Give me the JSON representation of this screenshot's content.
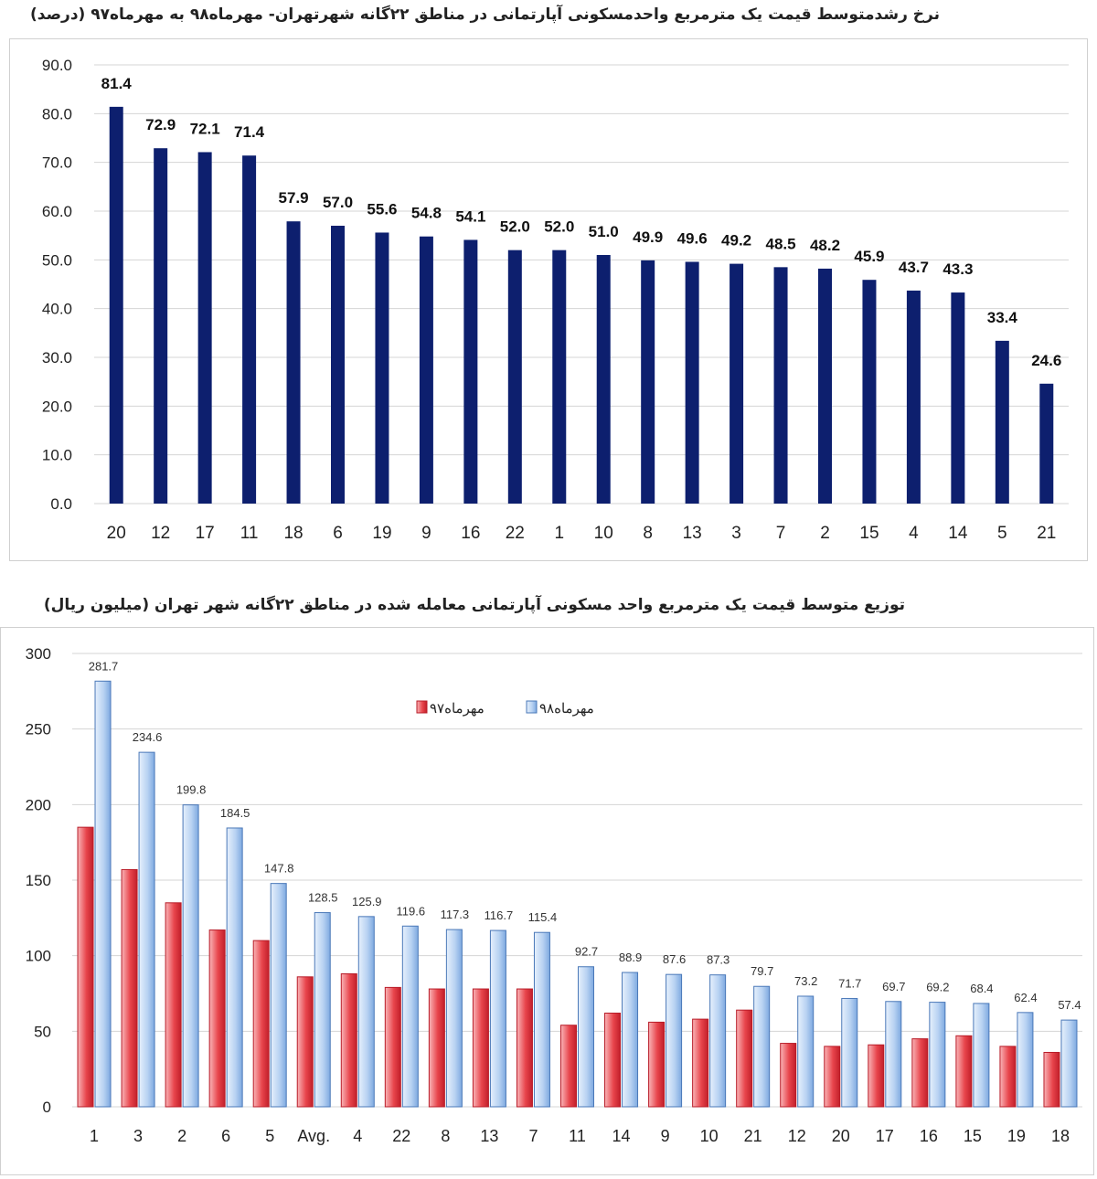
{
  "chart_data": [
    {
      "type": "bar",
      "title": "نرخ رشدمتوسط قیمت یک مترمربع واحدمسکونی آپارتمانی در مناطق ۲۲گانه شهرتهران- مهرماه۹۸ به مهرماه۹۷ (درصد)",
      "categories": [
        "20",
        "12",
        "17",
        "11",
        "18",
        "6",
        "19",
        "9",
        "16",
        "22",
        "1",
        "10",
        "8",
        "13",
        "3",
        "7",
        "2",
        "15",
        "4",
        "14",
        "5",
        "21"
      ],
      "values": [
        81.4,
        72.9,
        72.1,
        71.4,
        57.9,
        57.0,
        55.6,
        54.8,
        54.1,
        52.0,
        52.0,
        51.0,
        49.9,
        49.6,
        49.2,
        48.5,
        48.2,
        45.9,
        43.7,
        43.3,
        33.4,
        24.6
      ],
      "data_labels": [
        "81.4",
        "72.9",
        "72.1",
        "71.4",
        "57.9",
        "57.0",
        "55.6",
        "54.8",
        "54.1",
        "52.0",
        "52.0",
        "51.0",
        "49.9",
        "49.6",
        "49.2",
        "48.5",
        "48.2",
        "45.9",
        "43.7",
        "43.3",
        "33.4",
        "24.6"
      ],
      "yticks": [
        "0.0",
        "10.0",
        "20.0",
        "30.0",
        "40.0",
        "50.0",
        "60.0",
        "70.0",
        "80.0",
        "90.0"
      ],
      "ylim": [
        0,
        90
      ],
      "grid": true,
      "color": "#0d1f6e"
    },
    {
      "type": "bar",
      "title": "توزیع متوسط قیمت یک مترمربع واحد مسکونی آپارتمانی معامله شده در مناطق ۲۲گانه شهر تهران (میلیون ریال)",
      "categories": [
        "1",
        "3",
        "2",
        "6",
        "5",
        "Avg.",
        "4",
        "22",
        "8",
        "13",
        "7",
        "11",
        "14",
        "9",
        "10",
        "21",
        "12",
        "20",
        "17",
        "16",
        "15",
        "19",
        "18"
      ],
      "series": [
        {
          "name": "مهرماه۹۷",
          "color": "#e8454c",
          "values": [
            185,
            157,
            135,
            117,
            110,
            86,
            88,
            79,
            78,
            78,
            78,
            54,
            62,
            56,
            58,
            64,
            42,
            40,
            41,
            45,
            47,
            40,
            36
          ]
        },
        {
          "name": "مهرماه۹۸",
          "color": "#7ea9e0",
          "values": [
            281.7,
            234.6,
            199.8,
            184.5,
            147.8,
            128.5,
            125.9,
            119.6,
            117.3,
            116.7,
            115.4,
            92.7,
            88.9,
            87.6,
            87.3,
            79.7,
            73.2,
            71.7,
            69.7,
            69.2,
            68.4,
            62.4,
            57.4
          ]
        }
      ],
      "data_labels": [
        "281.7",
        "234.6",
        "199.8",
        "184.5",
        "147.8",
        "128.5",
        "125.9",
        "119.6",
        "117.3",
        "116.7",
        "115.4",
        "92.7",
        "88.9",
        "87.6",
        "87.3",
        "79.7",
        "73.2",
        "71.7",
        "69.7",
        "69.2",
        "68.4",
        "62.4",
        "57.4"
      ],
      "yticks": [
        "0",
        "50",
        "100",
        "150",
        "200",
        "250",
        "300"
      ],
      "ylim": [
        0,
        300
      ],
      "grid": true,
      "legend": "top-center"
    }
  ]
}
